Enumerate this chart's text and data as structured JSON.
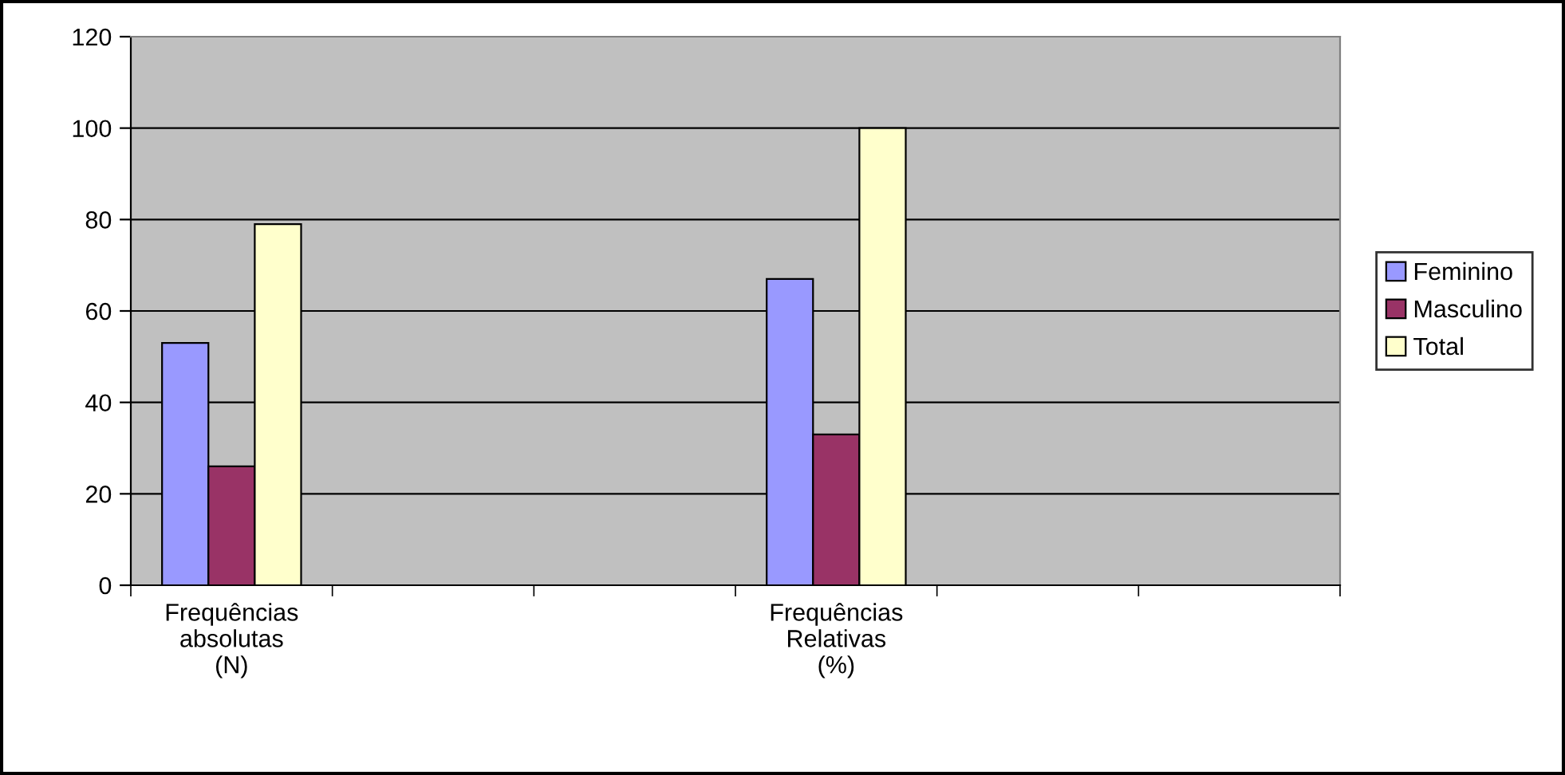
{
  "chart_data": {
    "type": "bar",
    "categories": [
      "Frequências\nabsolutas\n(N)",
      null,
      null,
      "Frequências\nRelativas\n(%)",
      null,
      null
    ],
    "series": [
      {
        "name": "Feminino",
        "color": "#9999ff",
        "values": [
          53,
          null,
          null,
          67,
          null,
          null
        ]
      },
      {
        "name": "Masculino",
        "color": "#993366",
        "values": [
          26,
          null,
          null,
          33,
          null,
          null
        ]
      },
      {
        "name": "Total",
        "color": "#ffffcc",
        "values": [
          79,
          null,
          null,
          100,
          null,
          null
        ]
      }
    ],
    "ylim": [
      0,
      120
    ],
    "yticks": [
      0,
      20,
      40,
      60,
      80,
      100,
      120
    ],
    "grid": "y",
    "legend": "right"
  }
}
